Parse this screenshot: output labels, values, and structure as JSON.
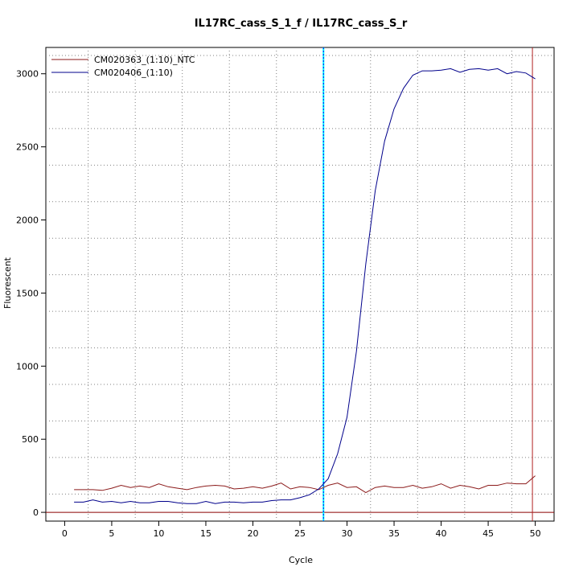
{
  "chart_data": {
    "type": "line",
    "title": "IL17RC_cass_S_1_f / IL17RC_cass_S_r",
    "xlabel": "Cycle",
    "ylabel": "Fluorescent",
    "xlim": [
      -2,
      52
    ],
    "ylim": [
      -60,
      3180
    ],
    "x_ticks": [
      0,
      5,
      10,
      15,
      20,
      25,
      30,
      35,
      40,
      45,
      50
    ],
    "y_ticks": [
      0,
      500,
      1000,
      1500,
      2000,
      2500,
      3000
    ],
    "grid": true,
    "legend_position": "top-left",
    "threshold_lines": {
      "vertical_cyan": 27.5,
      "vertical_red": 49.7,
      "horizontal_red": 0
    },
    "colors": {
      "ntc": "#8b1a1a",
      "sample": "#00008b",
      "cyan": "#00ffff",
      "threshold": "#b22222",
      "grid": "#808080"
    },
    "x": [
      1,
      2,
      3,
      4,
      5,
      6,
      7,
      8,
      9,
      10,
      11,
      12,
      13,
      14,
      15,
      16,
      17,
      18,
      19,
      20,
      21,
      22,
      23,
      24,
      25,
      26,
      27,
      28,
      29,
      30,
      31,
      32,
      33,
      34,
      35,
      36,
      37,
      38,
      39,
      40,
      41,
      42,
      43,
      44,
      45,
      46,
      47,
      48,
      49,
      50
    ],
    "series": [
      {
        "name": "CM020363_(1:10)_NTC",
        "color": "#8b1a1a",
        "values": [
          155,
          155,
          155,
          150,
          165,
          185,
          170,
          180,
          170,
          195,
          175,
          165,
          155,
          170,
          180,
          185,
          180,
          160,
          165,
          175,
          165,
          180,
          200,
          160,
          175,
          170,
          155,
          185,
          200,
          170,
          175,
          135,
          170,
          180,
          170,
          170,
          185,
          165,
          175,
          195,
          165,
          185,
          175,
          160,
          185,
          185,
          200,
          195,
          195,
          250
        ]
      },
      {
        "name": "CM020406_(1:10)",
        "color": "#00008b",
        "values": [
          70,
          70,
          85,
          70,
          75,
          65,
          75,
          65,
          65,
          75,
          75,
          65,
          60,
          60,
          75,
          60,
          70,
          70,
          65,
          70,
          70,
          80,
          85,
          85,
          100,
          120,
          160,
          230,
          400,
          650,
          1100,
          1700,
          2200,
          2540,
          2760,
          2900,
          2990,
          3020,
          3020,
          3025,
          3035,
          3010,
          3030,
          3035,
          3025,
          3035,
          3000,
          3015,
          3005,
          2965
        ]
      }
    ]
  }
}
